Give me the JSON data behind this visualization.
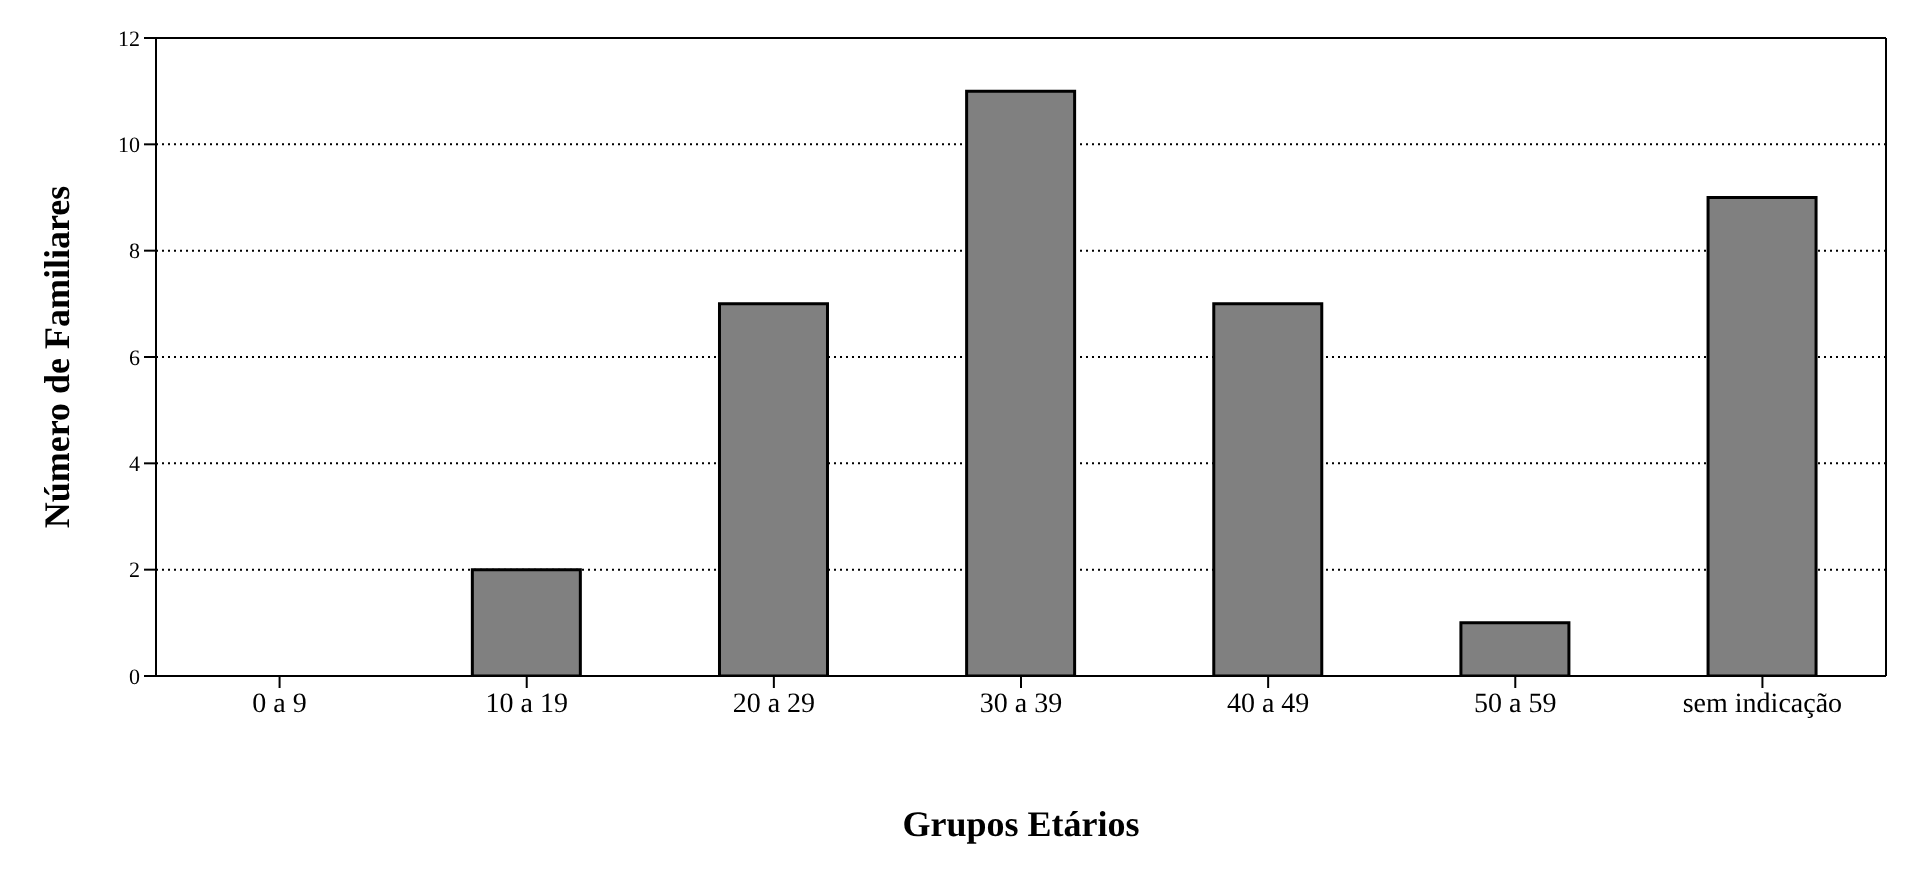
{
  "chart_data": {
    "type": "bar",
    "xlabel": "Grupos Etários",
    "ylabel": "Número de Familiares",
    "categories": [
      "0 a 9",
      "10 a 19",
      "20 a 29",
      "30 a 39",
      "40 a 49",
      "50 a 59",
      "sem indicação"
    ],
    "values": [
      0,
      2,
      7,
      11,
      7,
      1,
      9
    ],
    "color": "#808080",
    "ylim": [
      0,
      12
    ],
    "yticks": [
      0,
      2,
      4,
      6,
      8,
      10,
      12
    ],
    "grid": "y"
  }
}
